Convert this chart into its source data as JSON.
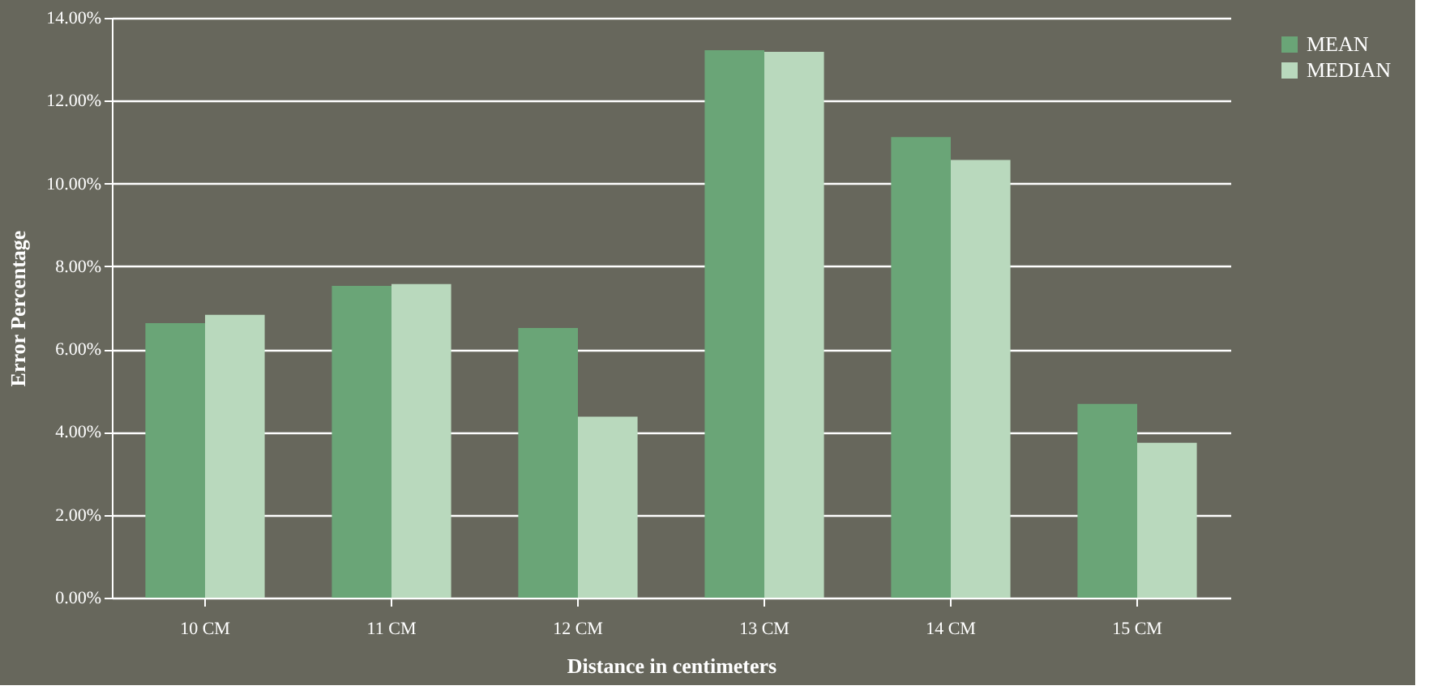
{
  "chart_data": {
    "type": "bar",
    "xlabel": "Distance in centimeters",
    "ylabel": "Error Percentage",
    "categories": [
      "10 CM",
      "11 CM",
      "12 CM",
      "13 CM",
      "14 CM",
      "15 CM"
    ],
    "series": [
      {
        "name": "MEAN",
        "color": "#6aa577",
        "values": [
          6.63,
          7.53,
          6.51,
          13.22,
          11.12,
          4.68
        ]
      },
      {
        "name": "MEDIAN",
        "color": "#b9d9bd",
        "values": [
          6.83,
          7.57,
          4.37,
          13.18,
          10.57,
          3.74
        ]
      }
    ],
    "ylim": [
      0,
      14
    ],
    "yticks": [
      {
        "value": 0,
        "label": "0.00%"
      },
      {
        "value": 2,
        "label": "2.00%"
      },
      {
        "value": 4,
        "label": "4.00%"
      },
      {
        "value": 6,
        "label": "6.00%"
      },
      {
        "value": 8,
        "label": "8.00%"
      },
      {
        "value": 10,
        "label": "10.00%"
      },
      {
        "value": 12,
        "label": "12.00%"
      },
      {
        "value": 14,
        "label": "14.00%"
      }
    ],
    "grid": "y",
    "legend": "right"
  }
}
